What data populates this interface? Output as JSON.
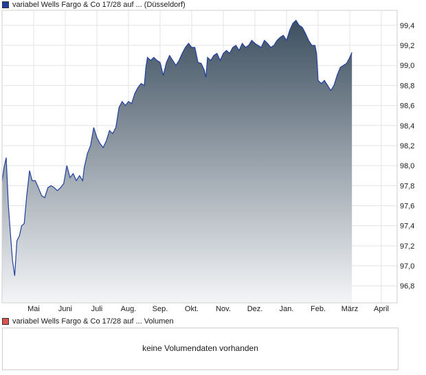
{
  "price_legend": {
    "label": "variabel Wells Fargo & Co 17/28 auf ... (Düsseldorf)"
  },
  "volume_legend": {
    "label": "variabel Wells Fargo & Co 17/28 auf ... Volumen"
  },
  "volume_panel": {
    "message": "keine Volumendaten vorhanden"
  },
  "colors": {
    "line": "#1f3f9c",
    "area_top": "#3d4f5f",
    "area_bottom": "#f4f5f7",
    "grid": "#e3e3e3"
  },
  "chart_data": {
    "type": "area",
    "title": "",
    "xlabel": "",
    "ylabel": "",
    "ylim": [
      96.63,
      99.55
    ],
    "y_ticks": [
      96.8,
      97.0,
      97.2,
      97.4,
      97.6,
      97.8,
      98.0,
      98.2,
      98.4,
      98.6,
      98.8,
      99.0,
      99.2,
      99.4
    ],
    "y_tick_labels": [
      "96,8",
      "97,0",
      "97,2",
      "97,4",
      "97,6",
      "97,8",
      "98,0",
      "98,2",
      "98,4",
      "98,6",
      "98,8",
      "99,0",
      "99,2",
      "99,4"
    ],
    "x_range": [
      0,
      12.5
    ],
    "months": [
      "Mai",
      "Juni",
      "Juli",
      "Aug.",
      "Sep.",
      "Okt.",
      "Nov.",
      "Dez.",
      "Jan.",
      "Feb.",
      "März",
      "April"
    ],
    "grid": true,
    "legend_position": "top-left",
    "series": [
      {
        "name": "variabel Wells Fargo & Co 17/28 auf ... (Düsseldorf)",
        "points": [
          [
            0.0,
            97.84
          ],
          [
            0.06,
            97.98
          ],
          [
            0.13,
            98.08
          ],
          [
            0.2,
            97.6
          ],
          [
            0.27,
            97.3
          ],
          [
            0.33,
            97.05
          ],
          [
            0.4,
            96.9
          ],
          [
            0.47,
            97.25
          ],
          [
            0.55,
            97.3
          ],
          [
            0.62,
            97.4
          ],
          [
            0.7,
            97.42
          ],
          [
            0.78,
            97.7
          ],
          [
            0.87,
            97.95
          ],
          [
            0.95,
            97.85
          ],
          [
            1.05,
            97.85
          ],
          [
            1.15,
            97.78
          ],
          [
            1.25,
            97.7
          ],
          [
            1.35,
            97.68
          ],
          [
            1.45,
            97.78
          ],
          [
            1.55,
            97.8
          ],
          [
            1.65,
            97.78
          ],
          [
            1.75,
            97.75
          ],
          [
            1.85,
            97.78
          ],
          [
            1.95,
            97.82
          ],
          [
            2.05,
            98.0
          ],
          [
            2.15,
            97.88
          ],
          [
            2.25,
            97.92
          ],
          [
            2.35,
            97.85
          ],
          [
            2.45,
            97.9
          ],
          [
            2.55,
            97.85
          ],
          [
            2.6,
            97.98
          ],
          [
            2.7,
            98.12
          ],
          [
            2.8,
            98.2
          ],
          [
            2.9,
            98.38
          ],
          [
            3.0,
            98.28
          ],
          [
            3.1,
            98.22
          ],
          [
            3.2,
            98.18
          ],
          [
            3.3,
            98.25
          ],
          [
            3.4,
            98.35
          ],
          [
            3.5,
            98.32
          ],
          [
            3.6,
            98.38
          ],
          [
            3.7,
            98.58
          ],
          [
            3.8,
            98.64
          ],
          [
            3.9,
            98.6
          ],
          [
            4.0,
            98.64
          ],
          [
            4.1,
            98.62
          ],
          [
            4.2,
            98.72
          ],
          [
            4.3,
            98.78
          ],
          [
            4.4,
            98.82
          ],
          [
            4.5,
            98.8
          ],
          [
            4.55,
            98.98
          ],
          [
            4.6,
            99.08
          ],
          [
            4.7,
            99.05
          ],
          [
            4.8,
            99.08
          ],
          [
            4.9,
            99.05
          ],
          [
            5.0,
            99.03
          ],
          [
            5.1,
            98.9
          ],
          [
            5.2,
            99.03
          ],
          [
            5.3,
            99.1
          ],
          [
            5.4,
            99.05
          ],
          [
            5.5,
            99.0
          ],
          [
            5.6,
            99.05
          ],
          [
            5.7,
            99.12
          ],
          [
            5.8,
            99.18
          ],
          [
            5.9,
            99.22
          ],
          [
            6.0,
            99.18
          ],
          [
            6.1,
            99.18
          ],
          [
            6.2,
            99.03
          ],
          [
            6.3,
            99.02
          ],
          [
            6.4,
            98.95
          ],
          [
            6.45,
            98.88
          ],
          [
            6.5,
            99.08
          ],
          [
            6.6,
            99.05
          ],
          [
            6.7,
            99.1
          ],
          [
            6.8,
            99.12
          ],
          [
            6.9,
            99.05
          ],
          [
            7.0,
            99.12
          ],
          [
            7.1,
            99.15
          ],
          [
            7.2,
            99.12
          ],
          [
            7.3,
            99.18
          ],
          [
            7.4,
            99.2
          ],
          [
            7.5,
            99.15
          ],
          [
            7.6,
            99.22
          ],
          [
            7.7,
            99.18
          ],
          [
            7.8,
            99.2
          ],
          [
            7.9,
            99.25
          ],
          [
            8.0,
            99.22
          ],
          [
            8.1,
            99.2
          ],
          [
            8.2,
            99.18
          ],
          [
            8.3,
            99.25
          ],
          [
            8.4,
            99.22
          ],
          [
            8.5,
            99.18
          ],
          [
            8.6,
            99.2
          ],
          [
            8.7,
            99.25
          ],
          [
            8.8,
            99.28
          ],
          [
            8.9,
            99.3
          ],
          [
            9.0,
            99.25
          ],
          [
            9.1,
            99.35
          ],
          [
            9.2,
            99.42
          ],
          [
            9.3,
            99.45
          ],
          [
            9.4,
            99.4
          ],
          [
            9.5,
            99.38
          ],
          [
            9.6,
            99.32
          ],
          [
            9.7,
            99.25
          ],
          [
            9.8,
            99.2
          ],
          [
            9.9,
            99.2
          ],
          [
            9.95,
            99.12
          ],
          [
            10.0,
            98.85
          ],
          [
            10.1,
            98.82
          ],
          [
            10.2,
            98.85
          ],
          [
            10.3,
            98.8
          ],
          [
            10.4,
            98.75
          ],
          [
            10.5,
            98.8
          ],
          [
            10.6,
            98.9
          ],
          [
            10.7,
            98.98
          ],
          [
            10.8,
            99.0
          ],
          [
            10.9,
            99.02
          ],
          [
            11.0,
            99.08
          ],
          [
            11.07,
            99.13
          ]
        ]
      }
    ]
  }
}
